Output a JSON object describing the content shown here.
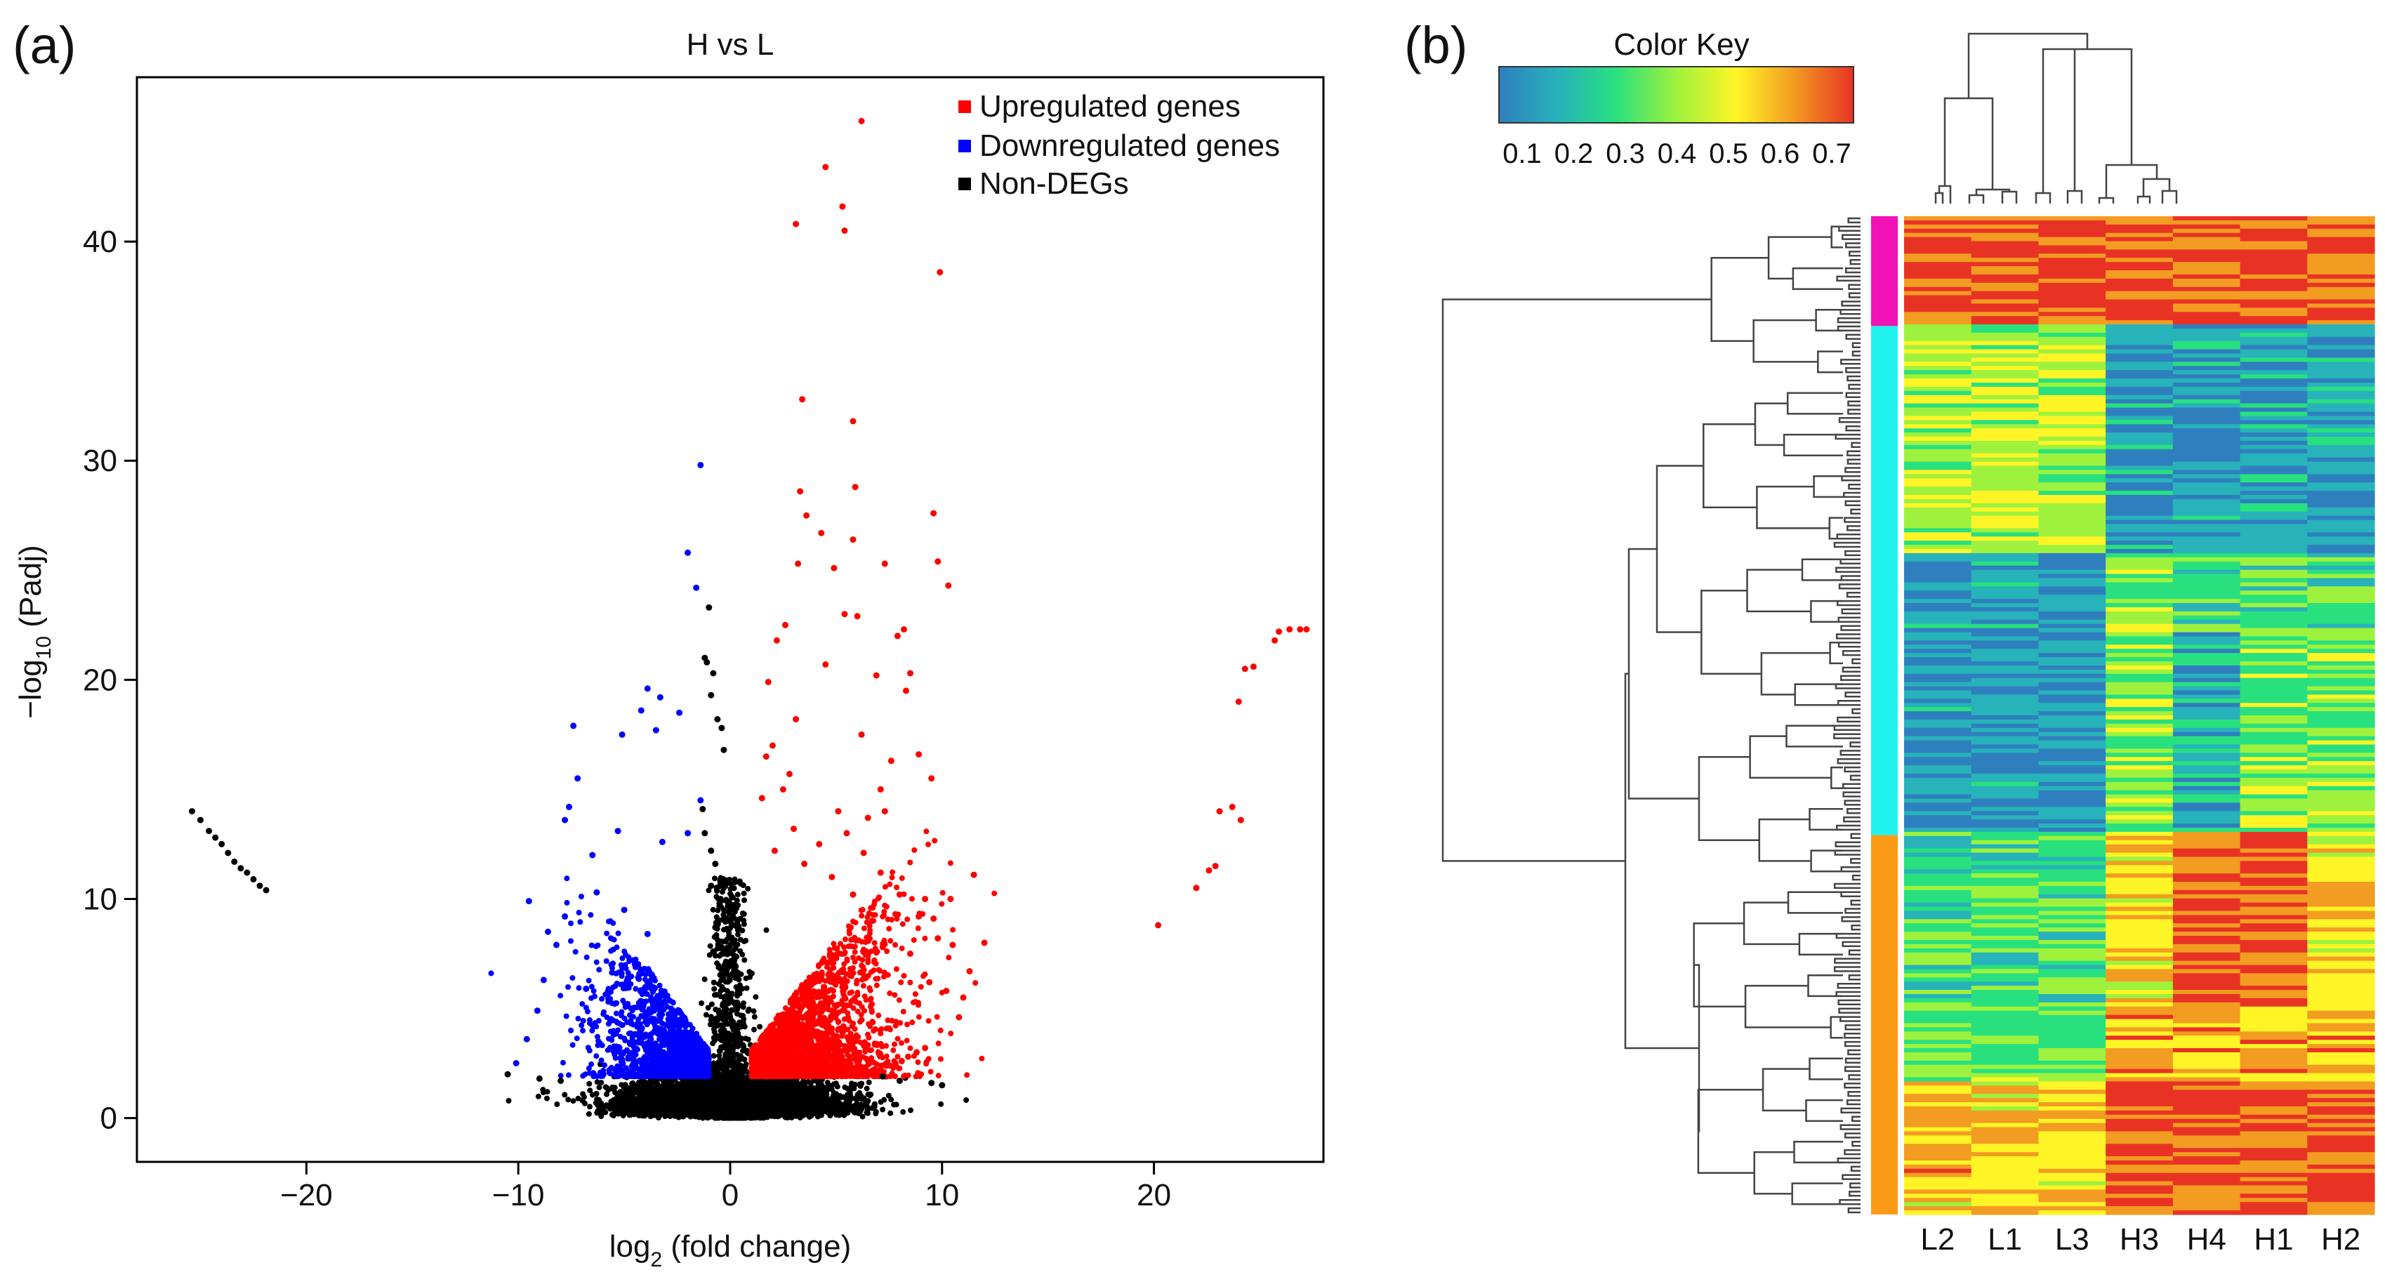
{
  "panel_a": {
    "label": "(a)",
    "chart_data": {
      "type": "scatter",
      "title": "H vs L",
      "xlabel": "log2 (fold change)",
      "xlabel_main": "log",
      "xlabel_sub": "2",
      "xlabel_rest": " (fold change)",
      "ylabel": "−log10 (Padj)",
      "ylabel_main": "−log",
      "ylabel_sub": "10",
      "ylabel_rest": " (Padj)",
      "xlim": [
        -28,
        28
      ],
      "ylim": [
        -2,
        47.5
      ],
      "xticks": [
        -20,
        -10,
        0,
        10,
        20
      ],
      "xtick_labels": [
        "−20",
        "−10",
        "0",
        "10",
        "20"
      ],
      "yticks": [
        0,
        10,
        20,
        30,
        40
      ],
      "ytick_labels": [
        "0",
        "10",
        "20",
        "30",
        "40"
      ],
      "legend_position": "top-right",
      "series": [
        {
          "name": "Upregulated genes",
          "color": "#ff0000",
          "points": [
            [
              6.2,
              45.5
            ],
            [
              4.5,
              43.4
            ],
            [
              5.3,
              41.6
            ],
            [
              3.1,
              40.8
            ],
            [
              5.4,
              40.5
            ],
            [
              9.9,
              38.6
            ],
            [
              3.4,
              32.8
            ],
            [
              5.8,
              31.8
            ],
            [
              3.3,
              28.6
            ],
            [
              5.9,
              28.8
            ],
            [
              3.6,
              27.5
            ],
            [
              9.6,
              27.6
            ],
            [
              4.3,
              26.7
            ],
            [
              5.8,
              26.4
            ],
            [
              3.2,
              25.3
            ],
            [
              4.9,
              25.1
            ],
            [
              7.3,
              25.3
            ],
            [
              9.8,
              25.4
            ],
            [
              10.3,
              24.3
            ],
            [
              5.4,
              23.0
            ],
            [
              6.0,
              22.9
            ],
            [
              7.9,
              22.0
            ],
            [
              8.2,
              22.3
            ],
            [
              2.2,
              21.8
            ],
            [
              2.6,
              22.5
            ],
            [
              4.5,
              20.7
            ],
            [
              6.9,
              20.2
            ],
            [
              1.8,
              19.9
            ],
            [
              8.3,
              19.5
            ],
            [
              8.5,
              20.3
            ],
            [
              3.1,
              18.2
            ],
            [
              2.0,
              17.0
            ],
            [
              6.2,
              17.5
            ],
            [
              7.6,
              16.3
            ],
            [
              8.9,
              16.6
            ],
            [
              9.5,
              15.5
            ],
            [
              7.1,
              15.0
            ],
            [
              2.5,
              15.0
            ],
            [
              7.3,
              14.0
            ],
            [
              11.5,
              11.1
            ],
            [
              10.4,
              10.0
            ],
            [
              24.3,
              20.5
            ],
            [
              24.0,
              19.0
            ],
            [
              25.9,
              22.2
            ],
            [
              26.4,
              22.3
            ],
            [
              26.9,
              22.3
            ],
            [
              27.2,
              22.3
            ],
            [
              25.7,
              21.8
            ],
            [
              24.7,
              20.6
            ],
            [
              23.1,
              14.0
            ],
            [
              23.7,
              14.2
            ],
            [
              24.1,
              13.6
            ],
            [
              22.6,
              11.3
            ],
            [
              22.9,
              11.5
            ],
            [
              22.0,
              10.5
            ],
            [
              20.2,
              8.8
            ],
            [
              9.2,
              3.2
            ],
            [
              8.8,
              3.0
            ],
            [
              8.4,
              2.8
            ],
            [
              8.1,
              2.6
            ],
            [
              7.8,
              2.5
            ],
            [
              7.5,
              2.4
            ],
            [
              11.0,
              5.5
            ],
            [
              10.5,
              7.9
            ],
            [
              12.0,
              8.0
            ],
            [
              8.9,
              9.2
            ],
            [
              9.2,
              10.0
            ],
            [
              9.6,
              9.1
            ],
            [
              7.8,
              9.3
            ],
            [
              8.0,
              10.2
            ],
            [
              7.1,
              11.2
            ],
            [
              6.3,
              12.1
            ],
            [
              5.5,
              13.0
            ],
            [
              4.2,
              12.5
            ],
            [
              3.0,
              13.2
            ],
            [
              2.1,
              12.2
            ],
            [
              1.5,
              14.6
            ],
            [
              1.7,
              16.5
            ],
            [
              2.8,
              15.7
            ],
            [
              3.5,
              11.6
            ],
            [
              4.8,
              11.0
            ],
            [
              5.8,
              10.2
            ],
            [
              6.7,
              9.0
            ],
            [
              7.2,
              7.8
            ],
            [
              8.5,
              7.5
            ],
            [
              9.4,
              6.2
            ],
            [
              10.2,
              5.8
            ],
            [
              10.8,
              4.6
            ],
            [
              11.3,
              6.7
            ],
            [
              9.8,
              8.2
            ],
            [
              6.5,
              13.7
            ],
            [
              5.1,
              14.0
            ]
          ]
        },
        {
          "name": "Downregulated genes",
          "color": "#0000ff",
          "points": [
            [
              -1.4,
              29.8
            ],
            [
              -2.0,
              25.8
            ],
            [
              -1.6,
              24.2
            ],
            [
              -3.9,
              19.6
            ],
            [
              -3.3,
              19.2
            ],
            [
              -4.2,
              18.6
            ],
            [
              -3.5,
              17.7
            ],
            [
              -7.4,
              17.9
            ],
            [
              -5.1,
              17.5
            ],
            [
              -7.2,
              15.5
            ],
            [
              -7.6,
              14.2
            ],
            [
              -2.4,
              18.5
            ],
            [
              -1.4,
              14.5
            ],
            [
              -7.8,
              13.6
            ],
            [
              -6.5,
              12.0
            ],
            [
              -5.3,
              13.1
            ],
            [
              -3.2,
              12.6
            ],
            [
              -2.0,
              13.0
            ],
            [
              -10.1,
              2.5
            ],
            [
              -9.6,
              3.6
            ],
            [
              -9.1,
              4.9
            ],
            [
              -8.8,
              6.3
            ],
            [
              -8.2,
              7.9
            ],
            [
              -7.8,
              9.2
            ],
            [
              -9.5,
              9.9
            ],
            [
              -6.3,
              10.3
            ],
            [
              -5.0,
              9.5
            ],
            [
              -3.9,
              8.4
            ],
            [
              -6.8,
              5.9
            ],
            [
              -5.6,
              7.0
            ],
            [
              -8.6,
              8.5
            ]
          ]
        },
        {
          "name": "Non-DEGs",
          "color": "#000000",
          "points": [
            [
              -1.0,
              23.3
            ],
            [
              -1.2,
              21.0
            ],
            [
              -0.8,
              20.3
            ],
            [
              -1.1,
              20.8
            ],
            [
              -0.9,
              19.3
            ],
            [
              -0.6,
              18.2
            ],
            [
              -0.4,
              17.8
            ],
            [
              -0.3,
              16.8
            ],
            [
              -1.3,
              14.1
            ],
            [
              -1.2,
              13.0
            ],
            [
              -0.9,
              12.2
            ],
            [
              -0.7,
              11.6
            ],
            [
              -0.9,
              10.6
            ],
            [
              -0.5,
              9.8
            ],
            [
              -0.7,
              8.7
            ],
            [
              -0.8,
              7.6
            ],
            [
              -10.5,
              2.0
            ],
            [
              -9.0,
              1.8
            ],
            [
              -8.0,
              1.7
            ],
            [
              7.2,
              1.9
            ],
            [
              8.0,
              1.7
            ],
            [
              9.5,
              1.6
            ],
            [
              10.0,
              1.5
            ],
            [
              -25.4,
              14.0
            ],
            [
              -25.0,
              13.6
            ],
            [
              -24.6,
              13.1
            ],
            [
              -24.3,
              12.8
            ],
            [
              -24.0,
              12.5
            ],
            [
              -23.7,
              12.1
            ],
            [
              -23.4,
              11.7
            ],
            [
              -23.1,
              11.4
            ],
            [
              -22.8,
              11.2
            ],
            [
              -22.5,
              10.9
            ],
            [
              -22.2,
              10.6
            ],
            [
              -21.9,
              10.4
            ]
          ]
        }
      ]
    }
  },
  "panel_b": {
    "label": "(b)",
    "color_key": {
      "title": "Color Key",
      "ticks": [
        0.1,
        0.2,
        0.3,
        0.4,
        0.5,
        0.6,
        0.7
      ],
      "tick_labels": [
        "0.1",
        "0.2",
        "0.3",
        "0.4",
        "0.5",
        "0.6",
        "0.7"
      ],
      "colors": [
        "#2f7fbf",
        "#27b3b9",
        "#29e07e",
        "#9ef23d",
        "#fff426",
        "#f39c22",
        "#e83324"
      ]
    },
    "chart_data": {
      "type": "heatmap",
      "columns": [
        "L2",
        "L1",
        "L3",
        "H3",
        "H4",
        "H1",
        "H2"
      ],
      "clusters": [
        {
          "color": "#f012b4",
          "fraction": 0.11
        },
        {
          "color": "#21f2ee",
          "fraction": 0.51
        },
        {
          "color": "#fb9a17",
          "fraction": 0.38
        }
      ]
    }
  }
}
